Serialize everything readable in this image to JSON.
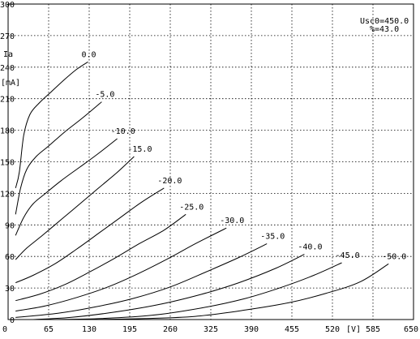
{
  "chart_data": {
    "type": "line",
    "title": "",
    "xlabel": "",
    "ylabel": "",
    "x_unit": "[V]",
    "y_label_lines": [
      "Ia",
      "[mA]"
    ],
    "xlim": [
      0,
      650
    ],
    "ylim": [
      0,
      300
    ],
    "xticks": [
      "0",
      "65",
      "130",
      "195",
      "260",
      "325",
      "390",
      "455",
      "520",
      "585",
      "650"
    ],
    "yticks": [
      "0",
      "30",
      "60",
      "90",
      "120",
      "150",
      "180",
      "210",
      "240",
      "270",
      "300"
    ],
    "grid": true,
    "annotation_lines": [
      "Usc0=450.0",
      "%=43.0"
    ],
    "series": [
      {
        "name": "0.0",
        "points": [
          [
            12,
            125
          ],
          [
            18,
            140
          ],
          [
            25,
            175
          ],
          [
            35,
            195
          ],
          [
            50,
            206
          ],
          [
            70,
            217
          ],
          [
            90,
            228
          ],
          [
            110,
            238
          ],
          [
            128,
            245
          ]
        ]
      },
      {
        "name": "-5.0",
        "points": [
          [
            12,
            100
          ],
          [
            20,
            125
          ],
          [
            30,
            143
          ],
          [
            45,
            155
          ],
          [
            65,
            165
          ],
          [
            90,
            178
          ],
          [
            120,
            192
          ],
          [
            150,
            207
          ]
        ]
      },
      {
        "name": "-10.0",
        "points": [
          [
            12,
            80
          ],
          [
            25,
            97
          ],
          [
            40,
            110
          ],
          [
            60,
            120
          ],
          [
            85,
            132
          ],
          [
            115,
            145
          ],
          [
            145,
            158
          ],
          [
            175,
            172
          ]
        ]
      },
      {
        "name": "-15.0",
        "points": [
          [
            12,
            57
          ],
          [
            30,
            68
          ],
          [
            55,
            80
          ],
          [
            85,
            95
          ],
          [
            115,
            110
          ],
          [
            145,
            125
          ],
          [
            175,
            140
          ],
          [
            202,
            155
          ]
        ]
      },
      {
        "name": "-20.0",
        "points": [
          [
            12,
            35
          ],
          [
            40,
            42
          ],
          [
            75,
            53
          ],
          [
            110,
            67
          ],
          [
            145,
            82
          ],
          [
            180,
            97
          ],
          [
            215,
            112
          ],
          [
            250,
            125
          ]
        ]
      },
      {
        "name": "-25.0",
        "points": [
          [
            12,
            18
          ],
          [
            50,
            24
          ],
          [
            90,
            33
          ],
          [
            130,
            45
          ],
          [
            170,
            58
          ],
          [
            210,
            72
          ],
          [
            250,
            85
          ],
          [
            285,
            100
          ]
        ]
      },
      {
        "name": "-30.0",
        "points": [
          [
            12,
            8
          ],
          [
            60,
            13
          ],
          [
            110,
            21
          ],
          [
            160,
            31
          ],
          [
            210,
            44
          ],
          [
            260,
            59
          ],
          [
            300,
            72
          ],
          [
            350,
            87
          ]
        ]
      },
      {
        "name": "-35.0",
        "points": [
          [
            12,
            2
          ],
          [
            80,
            6
          ],
          [
            140,
            12
          ],
          [
            200,
            20
          ],
          [
            260,
            31
          ],
          [
            320,
            46
          ],
          [
            370,
            59
          ],
          [
            415,
            72
          ]
        ]
      },
      {
        "name": "-40.0",
        "points": [
          [
            40,
            0
          ],
          [
            100,
            2
          ],
          [
            170,
            7
          ],
          [
            240,
            14
          ],
          [
            310,
            24
          ],
          [
            370,
            35
          ],
          [
            430,
            49
          ],
          [
            475,
            62
          ]
        ]
      },
      {
        "name": "-45.0",
        "points": [
          [
            70,
            0
          ],
          [
            150,
            1
          ],
          [
            230,
            4
          ],
          [
            310,
            11
          ],
          [
            380,
            20
          ],
          [
            440,
            31
          ],
          [
            490,
            42
          ],
          [
            535,
            54
          ]
        ]
      },
      {
        "name": "-50.0",
        "points": [
          [
            130,
            0
          ],
          [
            220,
            1
          ],
          [
            300,
            3
          ],
          [
            380,
            9
          ],
          [
            450,
            16
          ],
          [
            510,
            25
          ],
          [
            565,
            36
          ],
          [
            610,
            53
          ]
        ]
      }
    ]
  }
}
